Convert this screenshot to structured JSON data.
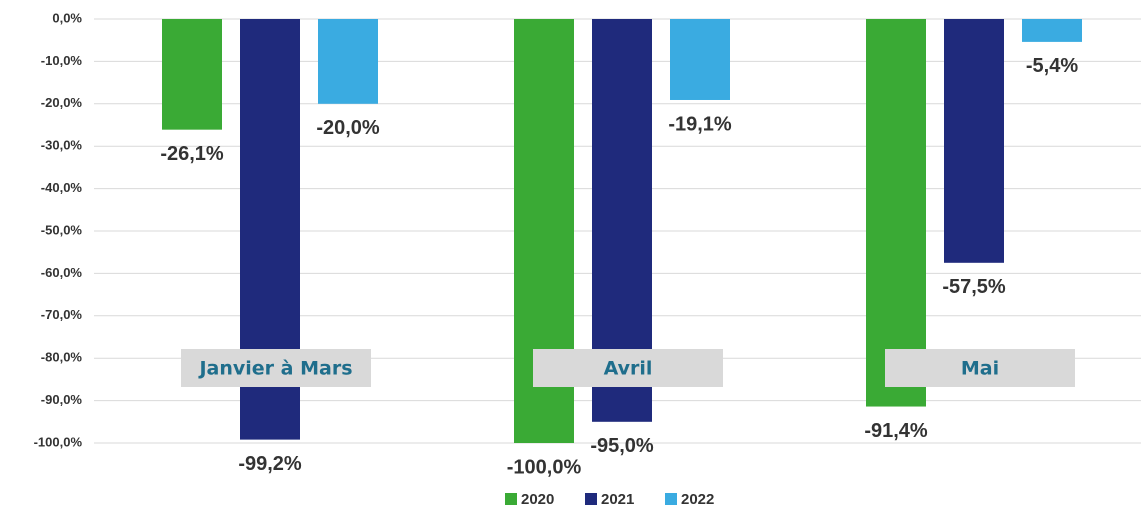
{
  "chart_data": {
    "type": "bar",
    "categories": [
      "Janvier à Mars",
      "Avril",
      "Mai"
    ],
    "series": [
      {
        "name": "2020",
        "color": "#3aaa35",
        "values": [
          -26.1,
          -100.0,
          -91.4
        ],
        "value_labels": [
          "-26,1%",
          "-100,0%",
          "-91,4%"
        ]
      },
      {
        "name": "2021",
        "color": "#1f2a7c",
        "values": [
          -99.2,
          -95.0,
          -57.5
        ],
        "value_labels": [
          "-99,2%",
          "-95,0%",
          "-57,5%"
        ]
      },
      {
        "name": "2022",
        "color": "#3aabe1",
        "values": [
          -20.0,
          -19.1,
          -5.4
        ],
        "value_labels": [
          "-20,0%",
          "-19,1%",
          "-5,4%"
        ]
      }
    ],
    "ylim": [
      -100,
      0
    ],
    "yticks": [
      {
        "value": 0,
        "label": "0,0%"
      },
      {
        "value": -10,
        "label": "-10,0%"
      },
      {
        "value": -20,
        "label": "-20,0%"
      },
      {
        "value": -30,
        "label": "-30,0%"
      },
      {
        "value": -40,
        "label": "-40,0%"
      },
      {
        "value": -50,
        "label": "-50,0%"
      },
      {
        "value": -60,
        "label": "-60,0%"
      },
      {
        "value": -70,
        "label": "-70,0%"
      },
      {
        "value": -80,
        "label": "-80,0%"
      },
      {
        "value": -90,
        "label": "-90,0%"
      },
      {
        "value": -100,
        "label": "-100,0%"
      }
    ],
    "grid": true
  }
}
